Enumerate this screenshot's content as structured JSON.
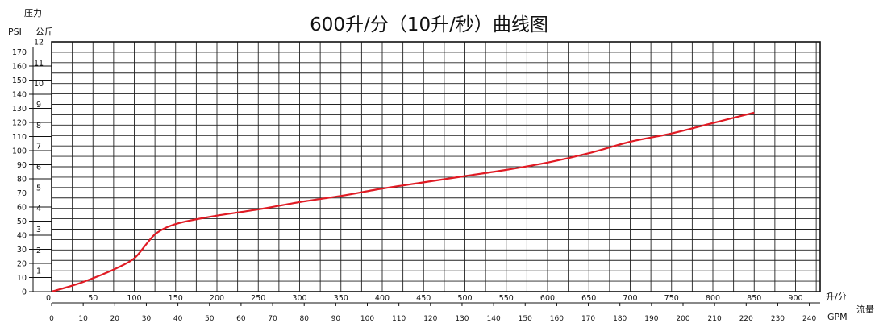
{
  "chart_data": {
    "type": "line",
    "title": "600升/分（10升/秒）曲线图",
    "y_axis_title": "压力",
    "y_psi_unit": "PSI",
    "y_kg_unit": "公斤",
    "x_lpm_unit": "升/分",
    "x_gpm_unit": "GPM",
    "x_axis_title": "流量",
    "x_lpm_ticks": [
      "0",
      "50",
      "100",
      "150",
      "200",
      "250",
      "300",
      "350",
      "400",
      "450",
      "500",
      "550",
      "600",
      "650",
      "700",
      "750",
      "800",
      "850",
      "900"
    ],
    "x_gpm_ticks": [
      "0",
      "10",
      "20",
      "30",
      "40",
      "50",
      "60",
      "70",
      "80",
      "90",
      "100",
      "110",
      "120",
      "130",
      "140",
      "150",
      "160",
      "170",
      "180",
      "190",
      "200",
      "210",
      "220",
      "230",
      "240"
    ],
    "y_psi_ticks": [
      "0",
      "10",
      "20",
      "30",
      "40",
      "50",
      "60",
      "70",
      "80",
      "90",
      "100",
      "110",
      "120",
      "130",
      "140",
      "150",
      "160",
      "170"
    ],
    "y_kg_ticks": [
      "1",
      "2",
      "3",
      "4",
      "5",
      "6",
      "7",
      "8",
      "9",
      "10",
      "11",
      "12"
    ],
    "xlim": [
      0,
      935
    ],
    "ylim": [
      0,
      12
    ],
    "grid": true,
    "series": [
      {
        "color": "#e01b24",
        "x": [
          0,
          30,
          60,
          80,
          100,
          115,
          125,
          140,
          160,
          200,
          250,
          300,
          350,
          400,
          450,
          500,
          550,
          600,
          650,
          700,
          750,
          800,
          850
        ],
        "y": [
          0,
          0.35,
          0.8,
          1.15,
          1.6,
          2.3,
          2.75,
          3.1,
          3.35,
          3.65,
          3.95,
          4.3,
          4.6,
          4.95,
          5.25,
          5.55,
          5.85,
          6.2,
          6.65,
          7.2,
          7.6,
          8.1,
          8.6
        ]
      }
    ]
  }
}
